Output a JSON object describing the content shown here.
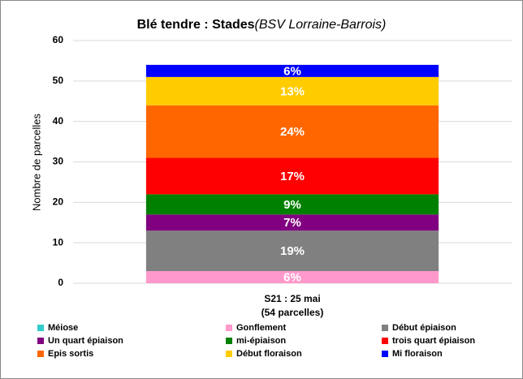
{
  "chart_data": {
    "type": "stacked_bar",
    "title": "Blé tendre : Stades",
    "subtitle": "(BSV Lorraine-Barrois)",
    "ylabel": "Nombre de parcelles",
    "categories": [
      [
        "S21 : 25 mai",
        "(54 parcelles)"
      ]
    ],
    "ylim": [
      0,
      60
    ],
    "yticks": [
      0,
      10,
      20,
      30,
      40,
      50,
      60
    ],
    "grid": true,
    "series": [
      {
        "name": "Méiose",
        "color": "#33cccc",
        "values": [
          0
        ],
        "value_labels": [
          null
        ]
      },
      {
        "name": "Gonflement",
        "color": "#ff99cc",
        "values": [
          3
        ],
        "value_labels": [
          "6%"
        ]
      },
      {
        "name": "Début épiaison",
        "color": "#808080",
        "values": [
          10
        ],
        "value_labels": [
          "19%"
        ]
      },
      {
        "name": "Un quart épiaison",
        "color": "#800080",
        "values": [
          4
        ],
        "value_labels": [
          "7%"
        ]
      },
      {
        "name": "mi-épiaison",
        "color": "#008000",
        "values": [
          5
        ],
        "value_labels": [
          "9%"
        ]
      },
      {
        "name": "trois quart épiaison",
        "color": "#ff0000",
        "values": [
          9
        ],
        "value_labels": [
          "17%"
        ]
      },
      {
        "name": "Epis sortis",
        "color": "#ff6600",
        "values": [
          13
        ],
        "value_labels": [
          "24%"
        ]
      },
      {
        "name": "Début floraison",
        "color": "#ffcc00",
        "values": [
          7
        ],
        "value_labels": [
          "13%"
        ]
      },
      {
        "name": "Mi floraison",
        "color": "#0000ff",
        "values": [
          3
        ],
        "value_labels": [
          "6%"
        ]
      }
    ]
  }
}
